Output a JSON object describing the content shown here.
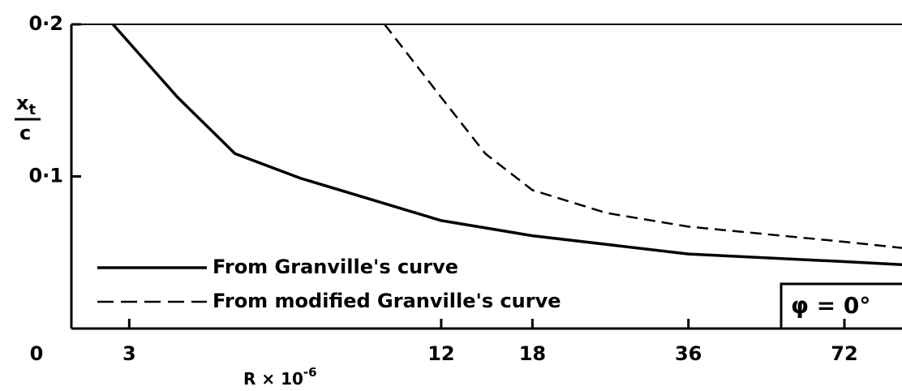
{
  "chart_data": {
    "type": "line",
    "x_label": {
      "text": "R × 10",
      "exponent": "-6"
    },
    "y_label": {
      "numerator": "x",
      "numerator_subscript": "t",
      "denominator": "c"
    },
    "annotation": "φ = 0°",
    "xscale": "log",
    "xlim": [
      2.32,
      93
    ],
    "xticks": [
      3,
      12,
      18,
      36,
      72
    ],
    "ylim": [
      0,
      0.2
    ],
    "yticks": [
      0,
      {
        "value": 0.1,
        "label": "0·1"
      },
      {
        "value": 0.2,
        "label": "0·2"
      }
    ],
    "legend": "lower left",
    "series": [
      {
        "name": "From Granville's curve",
        "color": "#000000",
        "dash": false,
        "x": [
          2.79,
          3.72,
          4.8,
          6.4,
          12,
          18,
          36,
          72,
          93
        ],
        "values": [
          0.2,
          0.152,
          0.115,
          0.099,
          0.071,
          0.061,
          0.049,
          0.044,
          0.042
        ]
      },
      {
        "name": "From modified Granville's curve",
        "color": "#000000",
        "dash": true,
        "x": [
          9.33,
          12,
          14.6,
          18,
          25,
          36,
          72,
          93
        ],
        "values": [
          0.2,
          0.152,
          0.115,
          0.091,
          0.076,
          0.067,
          0.057,
          0.053
        ]
      }
    ]
  }
}
